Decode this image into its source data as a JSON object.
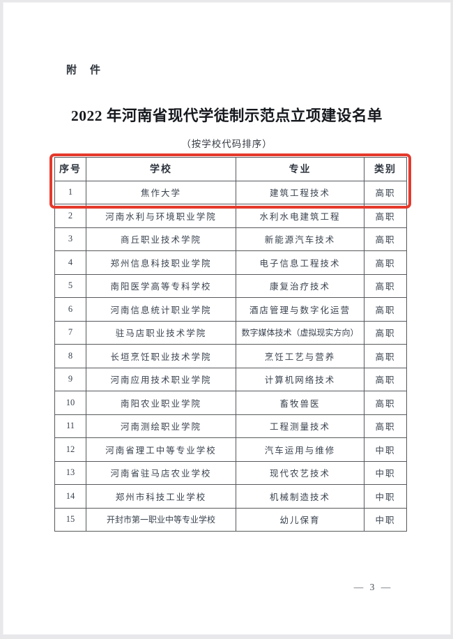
{
  "page": {
    "attachment_label": "附　件",
    "title": "2022 年河南省现代学徒制示范点立项建设名单",
    "subtitle": "（按学校代码排序）",
    "page_number": "— 3 —"
  },
  "colors": {
    "highlight_red": "#e43a2d",
    "table_border": "#55585c",
    "body_text": "#39424e",
    "title_text": "#15181d"
  },
  "table": {
    "headers": [
      "序号",
      "学校",
      "专业",
      "类别"
    ],
    "rows": [
      {
        "no": "1",
        "school": "焦作大学",
        "major": "建筑工程技术",
        "category": "高职",
        "highlighted": true
      },
      {
        "no": "2",
        "school": "河南水利与环境职业学院",
        "major": "水利水电建筑工程",
        "category": "高职",
        "highlighted": false
      },
      {
        "no": "3",
        "school": "商丘职业技术学院",
        "major": "新能源汽车技术",
        "category": "高职",
        "highlighted": false
      },
      {
        "no": "4",
        "school": "郑州信息科技职业学院",
        "major": "电子信息工程技术",
        "category": "高职",
        "highlighted": false
      },
      {
        "no": "5",
        "school": "南阳医学高等专科学校",
        "major": "康复治疗技术",
        "category": "高职",
        "highlighted": false
      },
      {
        "no": "6",
        "school": "河南信息统计职业学院",
        "major": "酒店管理与数字化运营",
        "category": "高职",
        "highlighted": false
      },
      {
        "no": "7",
        "school": "驻马店职业技术学院",
        "major": "数字媒体技术（虚拟现实方向）",
        "category": "高职",
        "highlighted": false
      },
      {
        "no": "8",
        "school": "长垣烹饪职业技术学院",
        "major": "烹饪工艺与营养",
        "category": "高职",
        "highlighted": false
      },
      {
        "no": "9",
        "school": "河南应用技术职业学院",
        "major": "计算机网络技术",
        "category": "高职",
        "highlighted": false
      },
      {
        "no": "10",
        "school": "南阳农业职业学院",
        "major": "畜牧兽医",
        "category": "高职",
        "highlighted": false
      },
      {
        "no": "11",
        "school": "河南测绘职业学院",
        "major": "工程测量技术",
        "category": "高职",
        "highlighted": false
      },
      {
        "no": "12",
        "school": "河南省理工中等专业学校",
        "major": "汽车运用与维修",
        "category": "中职",
        "highlighted": false
      },
      {
        "no": "13",
        "school": "河南省驻马店农业学校",
        "major": "现代农艺技术",
        "category": "中职",
        "highlighted": false
      },
      {
        "no": "14",
        "school": "郑州市科技工业学校",
        "major": "机械制造技术",
        "category": "中职",
        "highlighted": false
      },
      {
        "no": "15",
        "school": "开封市第一职业中等专业学校",
        "major": "幼儿保育",
        "category": "中职",
        "highlighted": false
      }
    ]
  }
}
